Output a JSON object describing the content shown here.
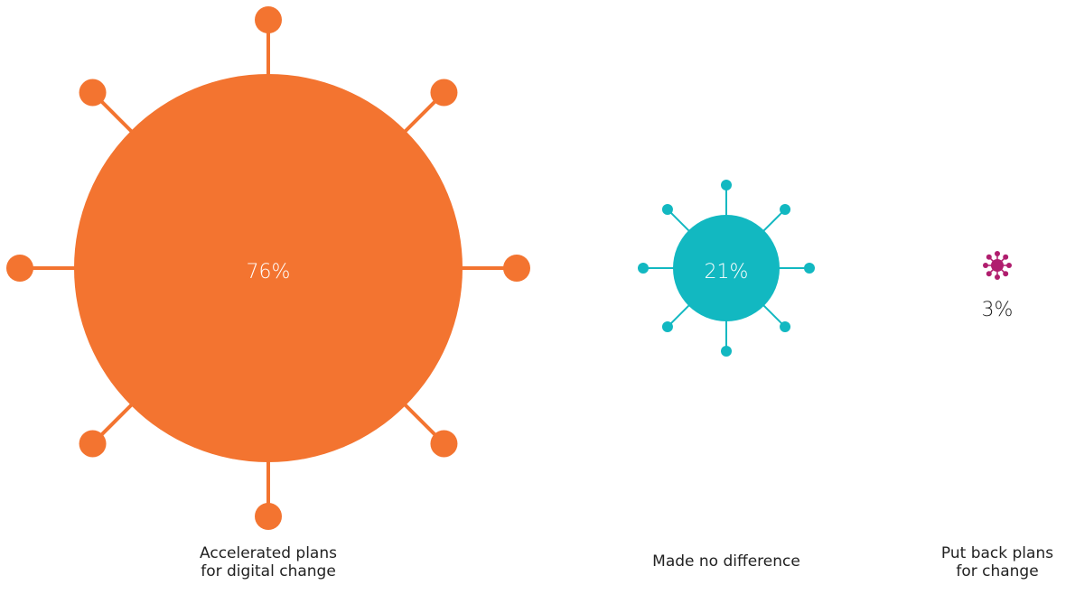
{
  "chart_data": {
    "type": "bubble",
    "categories": [
      {
        "label_lines": [
          "Accelerated plans",
          "for digital change"
        ],
        "value": 76,
        "value_label": "76%",
        "color": "#F37430",
        "label_color": "#ffffff"
      },
      {
        "label_lines": [
          "Made no difference"
        ],
        "value": 21,
        "value_label": "21%",
        "color": "#12B8C1",
        "label_color": "#ffffff"
      },
      {
        "label_lines": [
          "Put back plans",
          "for change"
        ],
        "value": 3,
        "value_label": "3%",
        "color": "#B01E6E",
        "label_color": "#222222"
      }
    ],
    "title": "",
    "xlabel": "",
    "ylabel": ""
  }
}
